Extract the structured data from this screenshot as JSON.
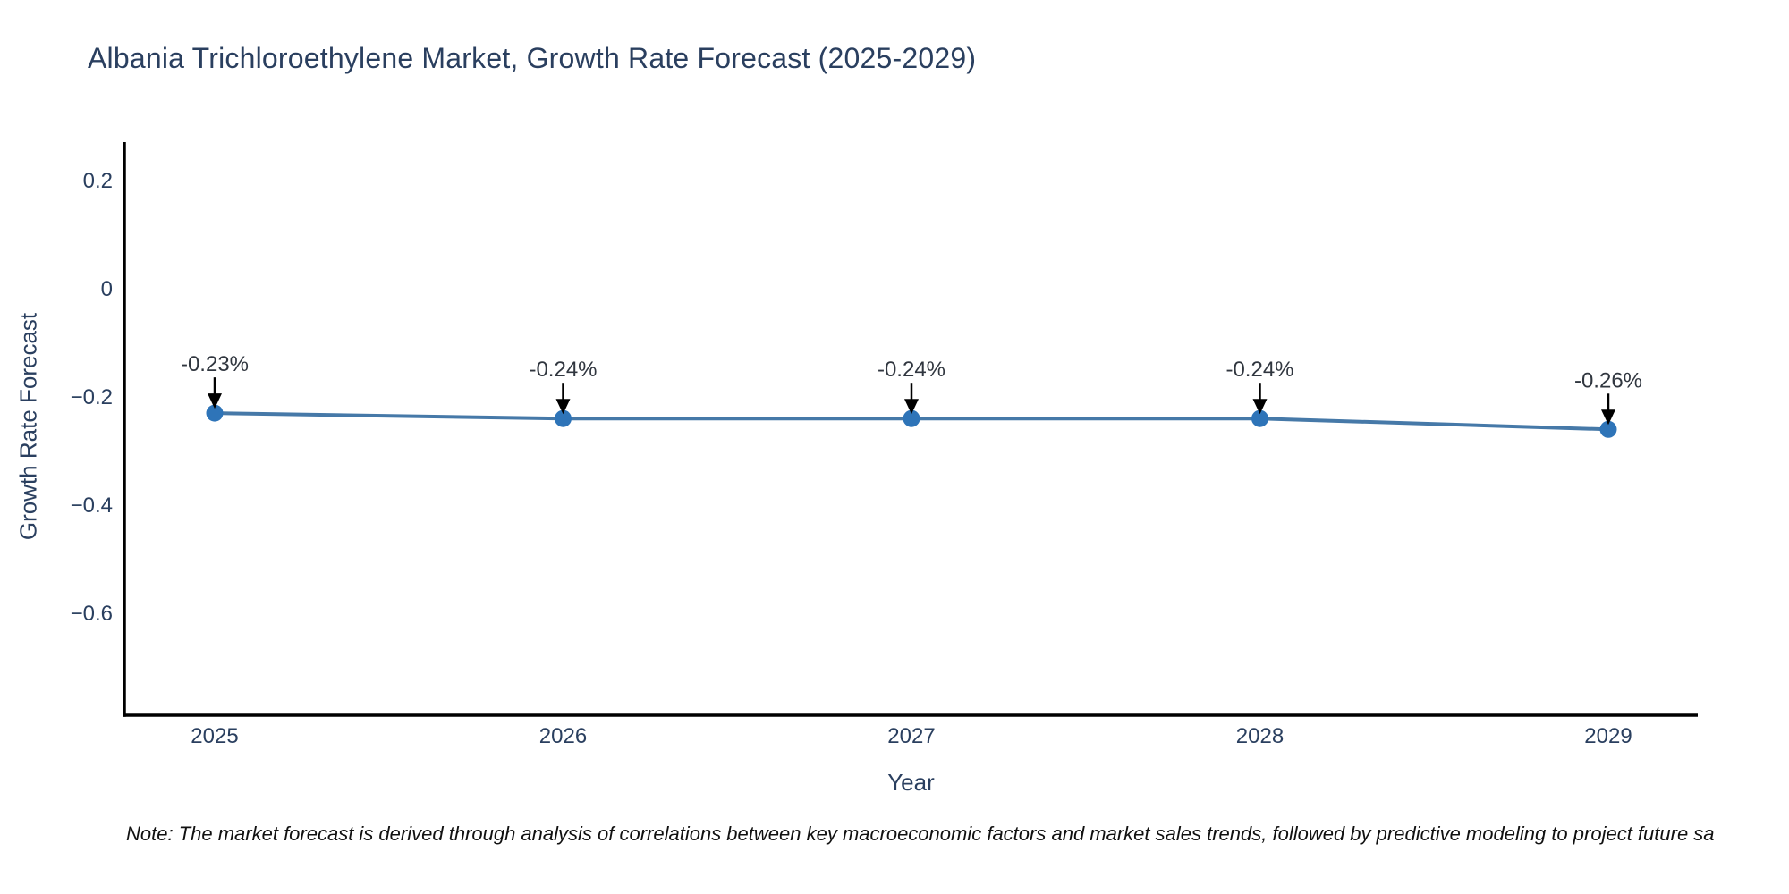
{
  "note": "Note: The market forecast is derived through analysis of correlations between key macroeconomic factors and market sales trends, followed by predictive modeling to project future sa",
  "chart_data": {
    "type": "line",
    "title": "Albania Trichloroethylene Market, Growth Rate Forecast (2025-2029)",
    "x": [
      2025,
      2026,
      2027,
      2028,
      2029
    ],
    "xtick_labels": [
      "2025",
      "2026",
      "2027",
      "2028",
      "2029"
    ],
    "series": [
      {
        "name": "Growth Rate Forecast",
        "values": [
          -0.23,
          -0.24,
          -0.24,
          -0.24,
          -0.26
        ]
      }
    ],
    "point_labels": [
      "-0.23%",
      "-0.24%",
      "-0.24%",
      "-0.24%",
      "-0.26%"
    ],
    "xlabel": "Year",
    "ylabel": "Growth Rate Forecast",
    "yticks": [
      0.2,
      0,
      -0.2,
      -0.4,
      -0.6
    ],
    "ytick_labels": [
      "0.2",
      "0",
      "−0.2",
      "−0.4",
      "−0.6"
    ],
    "ylim": [
      -0.79,
      0.27
    ],
    "grid": false,
    "legend": false,
    "annotation_arrow": "down-arrow-icon",
    "colors": {
      "line": "#4679a8",
      "marker": "#2e74b8",
      "axis": "#000000",
      "text": "#2a3f5f",
      "annotation": "#30363f",
      "background": "#ffffff"
    }
  }
}
